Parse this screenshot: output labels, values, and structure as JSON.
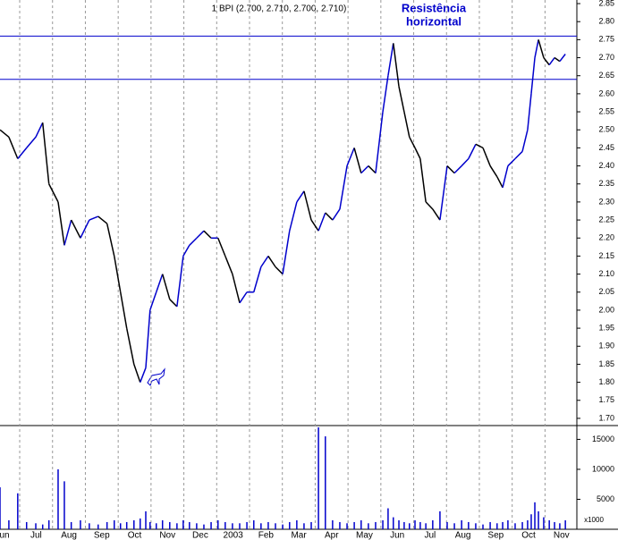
{
  "chart_data": [
    {
      "type": "line",
      "header": "1 BPI (2.700, 2.710, 2.700, 2.710)",
      "annotation": [
        "Resistência",
        "horizontal"
      ],
      "annotation_color": "#0000cc",
      "hlines": [
        2.76,
        2.64
      ],
      "hline_color": "#0000cc",
      "up_color": "#0000cc",
      "down_color": "#000000",
      "x": [
        0.4,
        0.67,
        0.94,
        1.21,
        1.49,
        1.7,
        1.89,
        2.17,
        2.36,
        2.57,
        2.85,
        3.12,
        3.39,
        3.66,
        3.88,
        4.07,
        4.26,
        4.48,
        4.67,
        4.84,
        4.97,
        5.16,
        5.35,
        5.57,
        5.79,
        5.98,
        6.17,
        6.39,
        6.61,
        6.83,
        7.04,
        7.26,
        7.48,
        7.7,
        7.92,
        8.13,
        8.35,
        8.57,
        8.79,
        9.01,
        9.22,
        9.44,
        9.66,
        9.88,
        10.1,
        10.31,
        10.53,
        10.75,
        10.97,
        11.19,
        11.4,
        11.62,
        11.84,
        12.06,
        12.22,
        12.38,
        12.55,
        12.71,
        12.87,
        13.04,
        13.2,
        13.37,
        13.58,
        13.8,
        14.02,
        14.24,
        14.46,
        14.67,
        14.89,
        15.11,
        15.33,
        15.54,
        15.71,
        15.87,
        16.09,
        16.31,
        16.47,
        16.58,
        16.69,
        16.8,
        16.96,
        17.13,
        17.29,
        17.45,
        17.62
      ],
      "values": [
        2.5,
        2.48,
        2.42,
        2.45,
        2.48,
        2.52,
        2.35,
        2.3,
        2.18,
        2.25,
        2.2,
        2.25,
        2.26,
        2.24,
        2.15,
        2.05,
        1.95,
        1.85,
        1.8,
        1.84,
        2.0,
        2.05,
        2.1,
        2.03,
        2.01,
        2.15,
        2.18,
        2.2,
        2.22,
        2.2,
        2.2,
        2.15,
        2.1,
        2.02,
        2.05,
        2.05,
        2.12,
        2.15,
        2.12,
        2.1,
        2.22,
        2.3,
        2.33,
        2.25,
        2.22,
        2.27,
        2.25,
        2.28,
        2.4,
        2.45,
        2.38,
        2.4,
        2.38,
        2.55,
        2.65,
        2.74,
        2.62,
        2.55,
        2.48,
        2.45,
        2.42,
        2.3,
        2.28,
        2.25,
        2.4,
        2.38,
        2.4,
        2.42,
        2.46,
        2.45,
        2.4,
        2.37,
        2.34,
        2.4,
        2.42,
        2.44,
        2.5,
        2.6,
        2.7,
        2.75,
        2.7,
        2.68,
        2.7,
        2.69,
        2.71
      ],
      "xlim": [
        0.4,
        17.97
      ],
      "xgrid": [
        1,
        2,
        3,
        4,
        5,
        6,
        7,
        8,
        9,
        10,
        11,
        12,
        13,
        14,
        15,
        16,
        17
      ],
      "xticks": [
        {
          "value": 0.5,
          "label": "un"
        },
        {
          "value": 1.5,
          "label": "Jul"
        },
        {
          "value": 2.5,
          "label": "Aug"
        },
        {
          "value": 3.5,
          "label": "Sep"
        },
        {
          "value": 4.5,
          "label": "Oct"
        },
        {
          "value": 5.5,
          "label": "Nov"
        },
        {
          "value": 6.5,
          "label": "Dec"
        },
        {
          "value": 7.5,
          "label": "2003"
        },
        {
          "value": 8.5,
          "label": "Feb"
        },
        {
          "value": 9.5,
          "label": "Mar"
        },
        {
          "value": 10.5,
          "label": "Apr"
        },
        {
          "value": 11.5,
          "label": "May"
        },
        {
          "value": 12.5,
          "label": "Jun"
        },
        {
          "value": 13.5,
          "label": "Jul"
        },
        {
          "value": 14.5,
          "label": "Aug"
        },
        {
          "value": 15.5,
          "label": "Sep"
        },
        {
          "value": 16.5,
          "label": "Oct"
        },
        {
          "value": 17.5,
          "label": "Nov"
        }
      ],
      "ylim": [
        1.68,
        2.86
      ],
      "yticks": [
        2.85,
        {
          "value": 2.8,
          "label": "2.80"
        },
        2.75,
        {
          "value": 2.7,
          "label": "2.70"
        },
        2.65,
        {
          "value": 2.6,
          "label": "2.60"
        },
        2.55,
        {
          "value": 2.5,
          "label": "2.50"
        },
        2.45,
        {
          "value": 2.4,
          "label": "2.40"
        },
        2.35,
        {
          "value": 2.3,
          "label": "2.30"
        },
        2.25,
        {
          "value": 2.2,
          "label": "2.20"
        },
        2.15,
        {
          "value": 2.1,
          "label": "2.10"
        },
        2.05,
        {
          "value": 2,
          "label": "2.00"
        },
        1.95,
        {
          "value": 1.9,
          "label": "1.90"
        },
        1.85,
        {
          "value": 1.8,
          "label": "1.80"
        },
        1.75,
        {
          "value": 1.7,
          "label": "1.70"
        }
      ]
    },
    {
      "type": "bar",
      "color": "#0000cc",
      "unit_label": "x1000",
      "values": [
        7000,
        1500,
        6000,
        1200,
        1000,
        800,
        1500,
        10000,
        8000,
        1200,
        1500,
        1000,
        800,
        1200,
        1500,
        1000,
        1200,
        1500,
        1800,
        3000,
        1200,
        1000,
        1500,
        1200,
        1000,
        1500,
        1200,
        1000,
        800,
        1200,
        1500,
        1200,
        1000,
        1000,
        1200,
        1500,
        1000,
        1200,
        1000,
        800,
        1200,
        1500,
        1000,
        1200,
        17000,
        15500,
        1500,
        1200,
        1000,
        1200,
        1500,
        1000,
        1200,
        1500,
        3500,
        2000,
        1500,
        1200,
        1000,
        1500,
        1200,
        1000,
        1500,
        3000,
        1200,
        1000,
        1500,
        1200,
        1000,
        800,
        1200,
        1000,
        1200,
        1500,
        1000,
        1200,
        1500,
        2500,
        4500,
        3000,
        2000,
        1500,
        1200,
        1000,
        1500
      ],
      "ylim": [
        0,
        17300
      ],
      "yticks": [
        5000,
        10000,
        15000
      ]
    }
  ]
}
